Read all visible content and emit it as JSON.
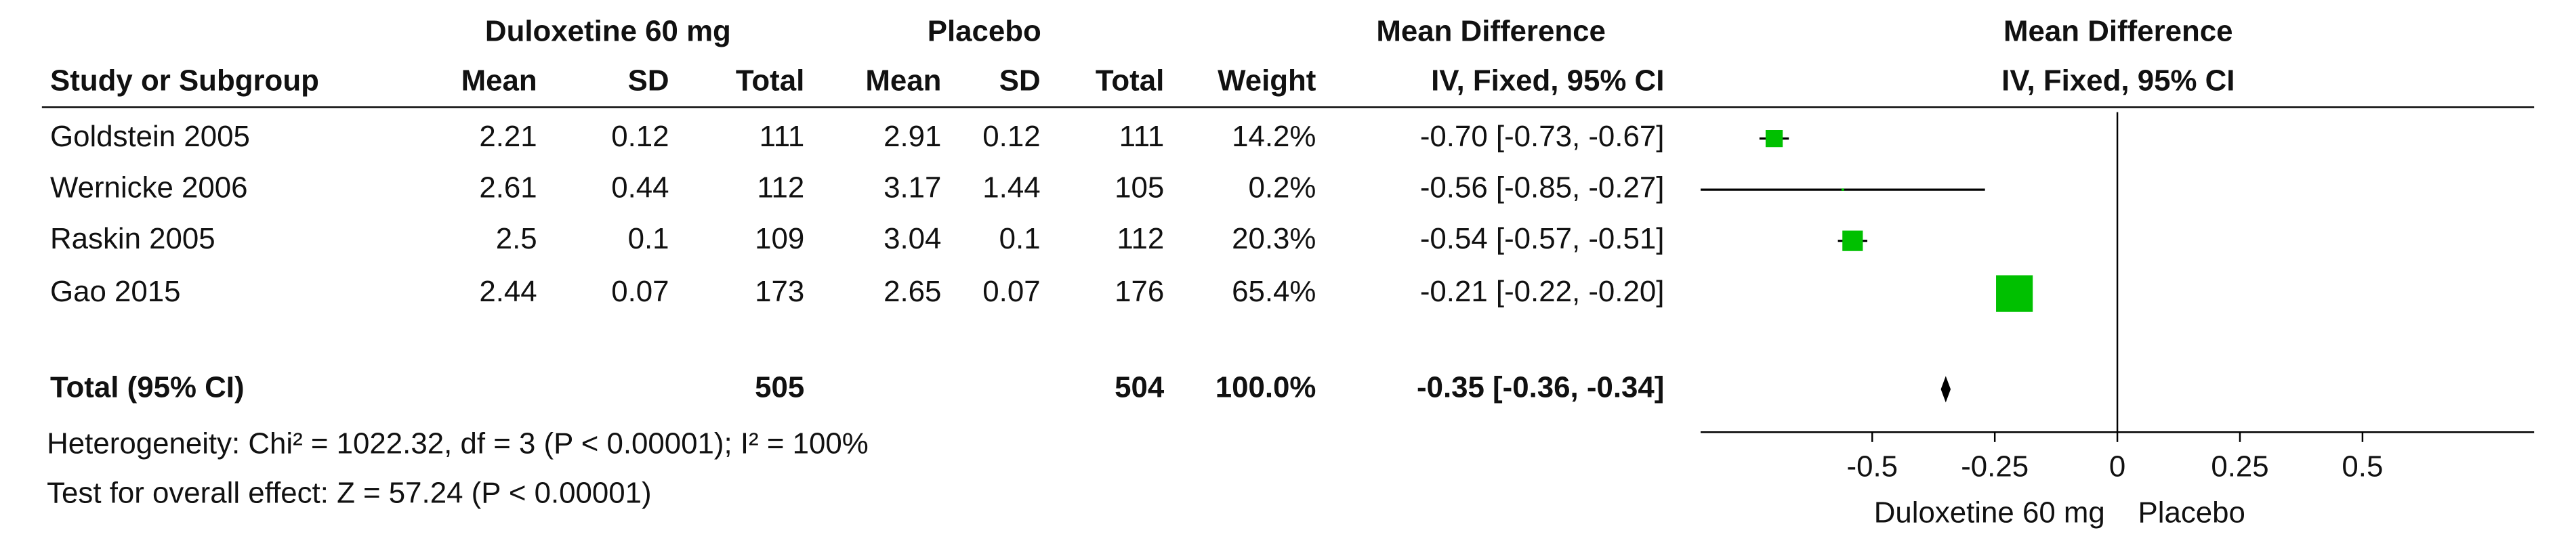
{
  "table": {
    "group_headers": [
      "Duloxetine 60 mg",
      "Placebo",
      "Mean Difference"
    ],
    "columns": [
      "Study or Subgroup",
      "Mean",
      "SD",
      "Total",
      "Mean",
      "SD",
      "Total",
      "Weight",
      "IV, Fixed, 95% CI"
    ],
    "rows": [
      [
        "Goldstein 2005",
        "2.21",
        "0.12",
        "111",
        "2.91",
        "0.12",
        "111",
        "14.2%",
        "-0.70 [-0.73, -0.67]"
      ],
      [
        "Wernicke 2006",
        "2.61",
        "0.44",
        "112",
        "3.17",
        "1.44",
        "105",
        "0.2%",
        "-0.56 [-0.85, -0.27]"
      ],
      [
        "Raskin 2005",
        "2.5",
        "0.1",
        "109",
        "3.04",
        "0.1",
        "112",
        "20.3%",
        "-0.54 [-0.57, -0.51]"
      ],
      [
        "Gao 2015",
        "2.44",
        "0.07",
        "173",
        "2.65",
        "0.07",
        "176",
        "65.4%",
        "-0.21 [-0.22, -0.20]"
      ]
    ],
    "total_row": {
      "label": "Total (95% CI)",
      "total1": "505",
      "total2": "504",
      "weight": "100.0%",
      "ci": "-0.35 [-0.36, -0.34]"
    },
    "heterogeneity": "Heterogeneity: Chi² = 1022.32, df = 3 (P < 0.00001); I² = 100%",
    "overall_effect": "Test for overall effect: Z = 57.24 (P < 0.00001)"
  },
  "chart_data": {
    "type": "forest",
    "title": "Mean Difference",
    "subtitle": "IV, Fixed, 95% CI",
    "values": [
      -0.7,
      -0.56,
      -0.54,
      -0.21
    ],
    "ci_low": [
      -0.73,
      -0.85,
      -0.57,
      -0.22
    ],
    "ci_high": [
      -0.67,
      -0.27,
      -0.51,
      -0.2
    ],
    "weights": [
      14.2,
      0.2,
      20.3,
      65.4
    ],
    "total": {
      "value": -0.35,
      "ci_low": -0.36,
      "ci_high": -0.34
    },
    "xlim": [
      -0.85,
      0.85
    ],
    "xticks": [
      -0.5,
      -0.25,
      0,
      0.25,
      0.5
    ],
    "left_label": "Duloxetine 60 mg",
    "right_label": "Placebo",
    "color": "#00c000"
  }
}
